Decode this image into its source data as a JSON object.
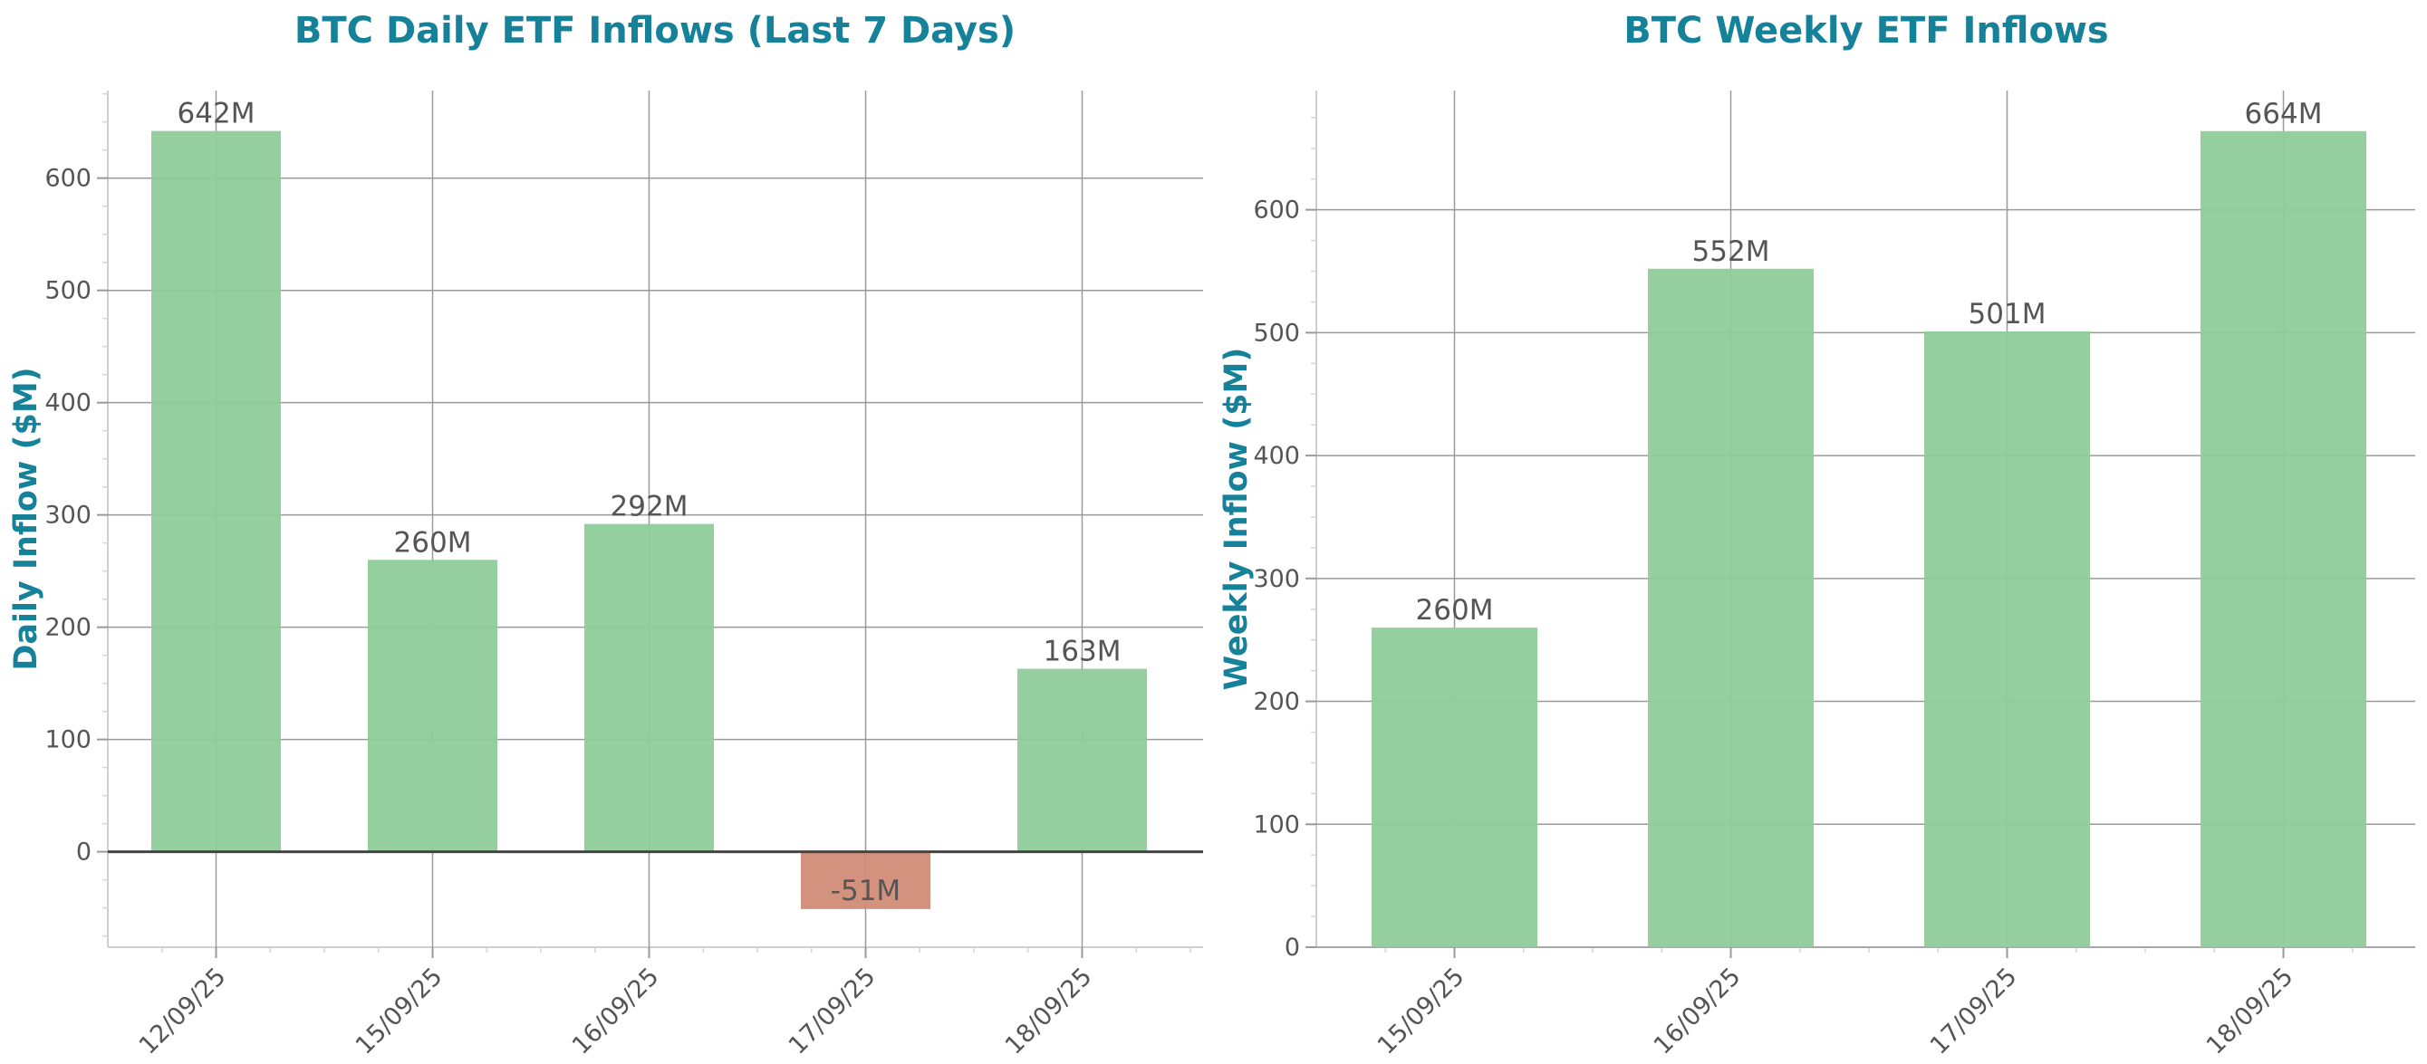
{
  "colors": {
    "title": "#16829a",
    "positive": "#8fcc9a",
    "negative": "#d18c77",
    "grid": "#9a9a9a",
    "text": "#555555"
  },
  "chart_data": [
    {
      "type": "bar",
      "title": "BTC Daily ETF Inflows (Last 7 Days)",
      "ylabel": "Daily Inflow ($M)",
      "xlabel": "",
      "categories": [
        "12/09/25",
        "15/09/25",
        "16/09/25",
        "17/09/25",
        "18/09/25"
      ],
      "values": [
        642,
        260,
        292,
        -51,
        163
      ],
      "data_labels": [
        "642M",
        "260M",
        "292M",
        "-51M",
        "163M"
      ],
      "ylim": [
        -85,
        678
      ],
      "yticks": [
        0,
        100,
        200,
        300,
        400,
        500,
        600
      ],
      "ytick_labels": [
        "0",
        "100",
        "200",
        "300",
        "400",
        "500",
        "600"
      ],
      "grid": true,
      "zero_line": true
    },
    {
      "type": "bar",
      "title": "BTC Weekly ETF Inflows",
      "ylabel": "Weekly Inflow ($M)",
      "xlabel": "",
      "categories": [
        "15/09/25",
        "16/09/25",
        "17/09/25",
        "18/09/25"
      ],
      "values": [
        260,
        552,
        501,
        664
      ],
      "data_labels": [
        "260M",
        "552M",
        "501M",
        "664M"
      ],
      "ylim": [
        0,
        697
      ],
      "yticks": [
        0,
        100,
        200,
        300,
        400,
        500,
        600
      ],
      "ytick_labels": [
        "0",
        "100",
        "200",
        "300",
        "400",
        "500",
        "600"
      ],
      "grid": true,
      "zero_line": false
    }
  ]
}
